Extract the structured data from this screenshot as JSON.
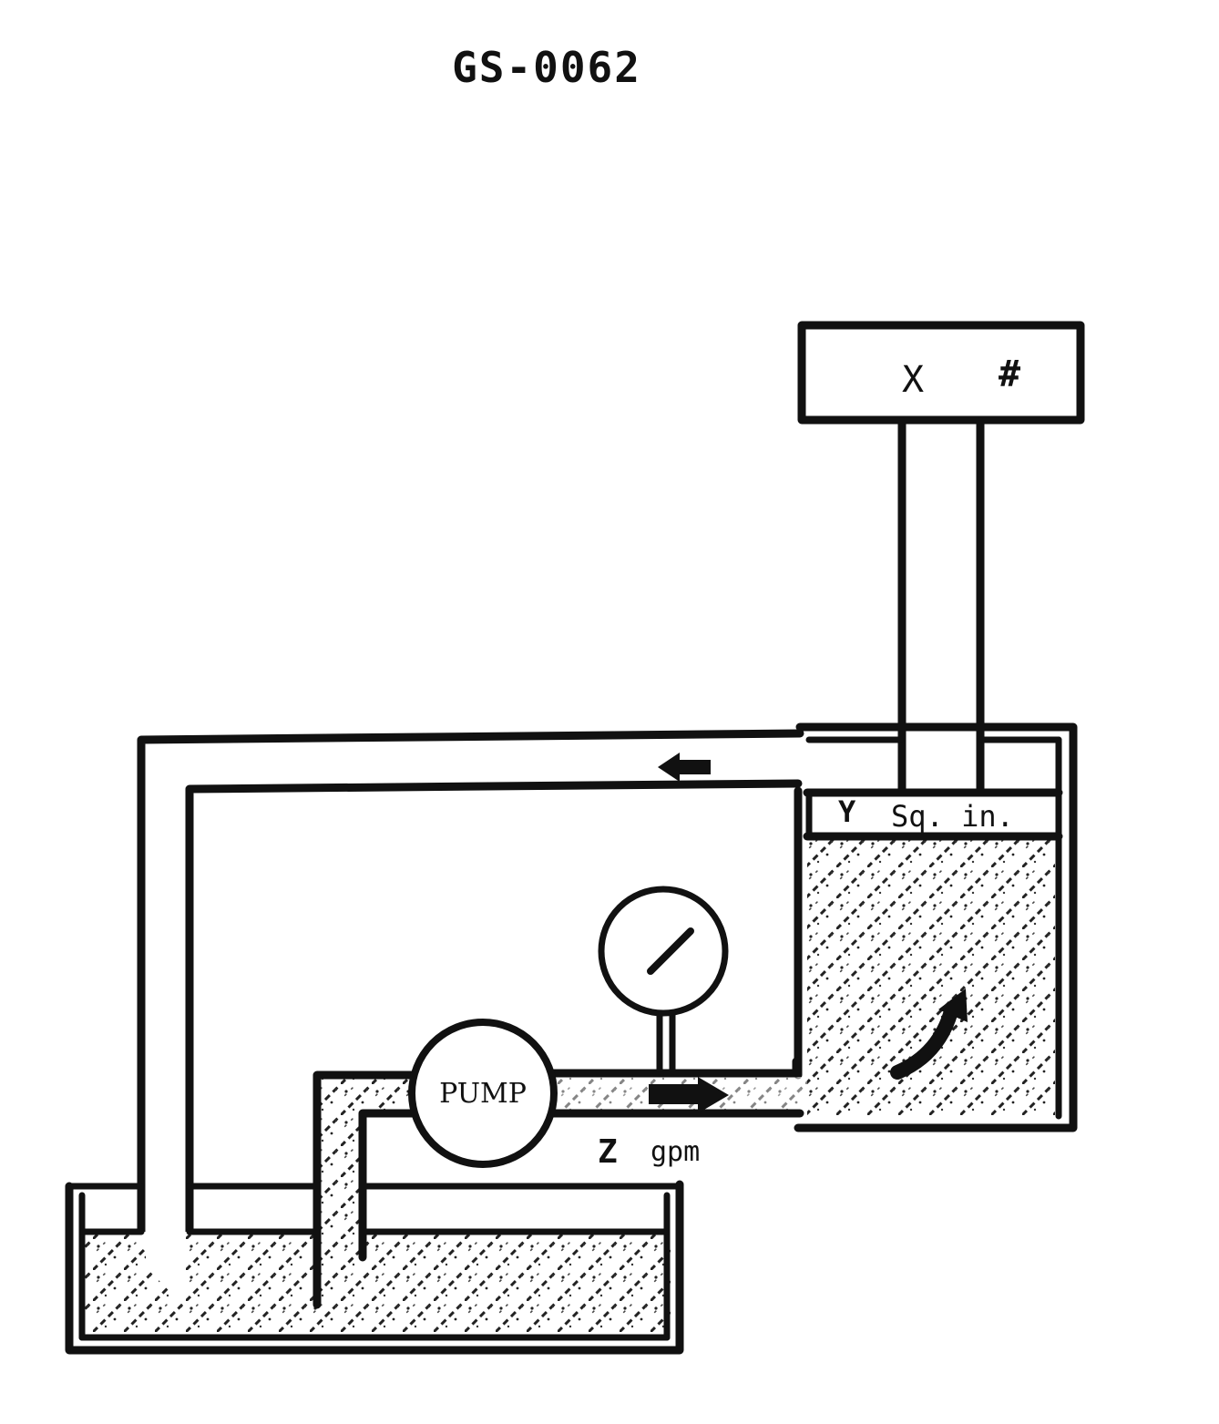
{
  "title": "GS-0062",
  "labels": {
    "weight": "X",
    "weight_unit": "#",
    "area": "Y",
    "area_unit": "Sq. in.",
    "flow": "Z",
    "flow_unit": "gpm",
    "pump": "PUMP"
  },
  "colors": {
    "ink": "#111111",
    "paper": "#ffffff"
  }
}
